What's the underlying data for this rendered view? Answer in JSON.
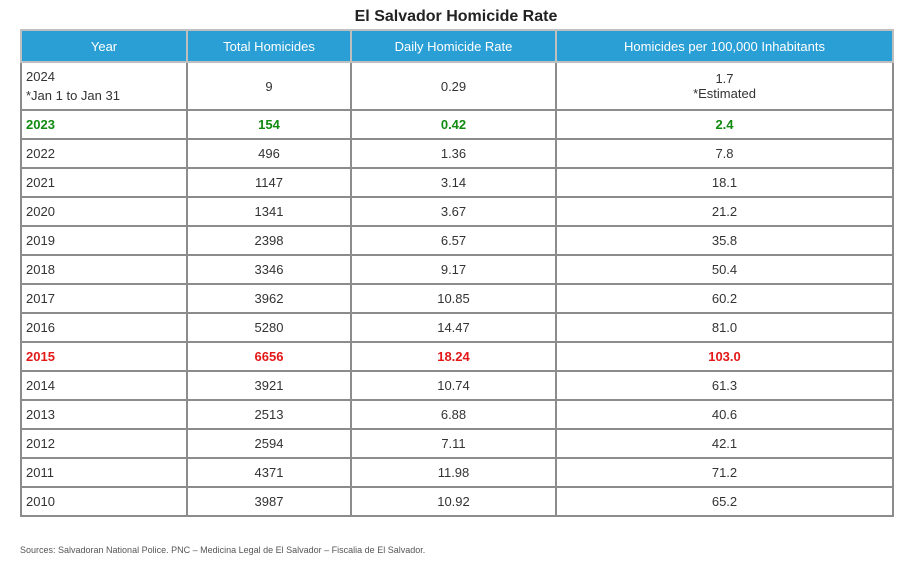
{
  "chart_data": {
    "type": "table",
    "title": "El Salvador Homicide Rate",
    "columns": [
      "Year",
      "Total Homicides",
      "Daily Homicide Rate",
      "Homicides per 100,000 Inhabitants"
    ],
    "rows": [
      {
        "year": "2024",
        "year_note": "*Jan 1 to Jan 31",
        "total": "9",
        "daily": "0.29",
        "per100k": "1.7",
        "per100k_note": "*Estimated",
        "style": "tall"
      },
      {
        "year": "2023",
        "total": "154",
        "daily": "0.42",
        "per100k": "2.4",
        "style": "green"
      },
      {
        "year": "2022",
        "total": "496",
        "daily": "1.36",
        "per100k": "7.8"
      },
      {
        "year": "2021",
        "total": "1147",
        "daily": "3.14",
        "per100k": "18.1"
      },
      {
        "year": "2020",
        "total": "1341",
        "daily": "3.67",
        "per100k": "21.2"
      },
      {
        "year": "2019",
        "total": "2398",
        "daily": "6.57",
        "per100k": "35.8"
      },
      {
        "year": "2018",
        "total": "3346",
        "daily": "9.17",
        "per100k": "50.4"
      },
      {
        "year": "2017",
        "total": "3962",
        "daily": "10.85",
        "per100k": "60.2"
      },
      {
        "year": "2016",
        "total": "5280",
        "daily": "14.47",
        "per100k": "81.0"
      },
      {
        "year": "2015",
        "total": "6656",
        "daily": "18.24",
        "per100k": "103.0",
        "style": "red"
      },
      {
        "year": "2014",
        "total": "3921",
        "daily": "10.74",
        "per100k": "61.3"
      },
      {
        "year": "2013",
        "total": "2513",
        "daily": "6.88",
        "per100k": "40.6"
      },
      {
        "year": "2012",
        "total": "2594",
        "daily": "7.11",
        "per100k": "42.1"
      },
      {
        "year": "2011",
        "total": "4371",
        "daily": "11.98",
        "per100k": "71.2"
      },
      {
        "year": "2010",
        "total": "3987",
        "daily": "10.92",
        "per100k": "65.2"
      }
    ],
    "source": "Sources: Salvadoran National Police. PNC – Medicina Legal de El Salvador – Fiscalia de El Salvador.",
    "colors": {
      "header_bg": "#2a9fd6",
      "highlight_green": "#118a11",
      "highlight_red": "#e31818"
    }
  }
}
